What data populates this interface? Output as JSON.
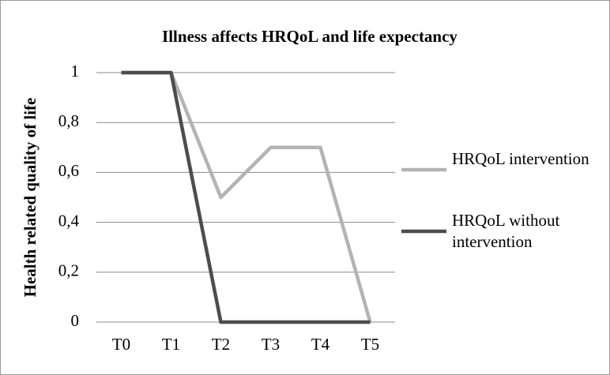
{
  "chart_data": {
    "type": "line",
    "title": "Illness affects HRQoL and life expectancy",
    "y_label": "Health related quality of life",
    "categories": [
      "T0",
      "T1",
      "T2",
      "T3",
      "T4",
      "T5"
    ],
    "series": [
      {
        "name": "HRQoL intervention",
        "color": "#b3b3b3",
        "values": [
          1,
          1,
          0.5,
          0.7,
          0.7,
          0
        ]
      },
      {
        "name": "HRQoL without intervention",
        "color": "#4d4d4d",
        "values": [
          1,
          1,
          0,
          0,
          0,
          0
        ]
      }
    ],
    "ylim": [
      0,
      1
    ],
    "yticks": [
      0,
      {
        "value": 0.2,
        "label": "0,2"
      },
      {
        "value": 0.4,
        "label": "0,4"
      },
      {
        "value": 0.6,
        "label": "0,6"
      },
      {
        "value": 0.8,
        "label": "0,8"
      },
      1
    ],
    "grid": true,
    "legend": "right"
  }
}
